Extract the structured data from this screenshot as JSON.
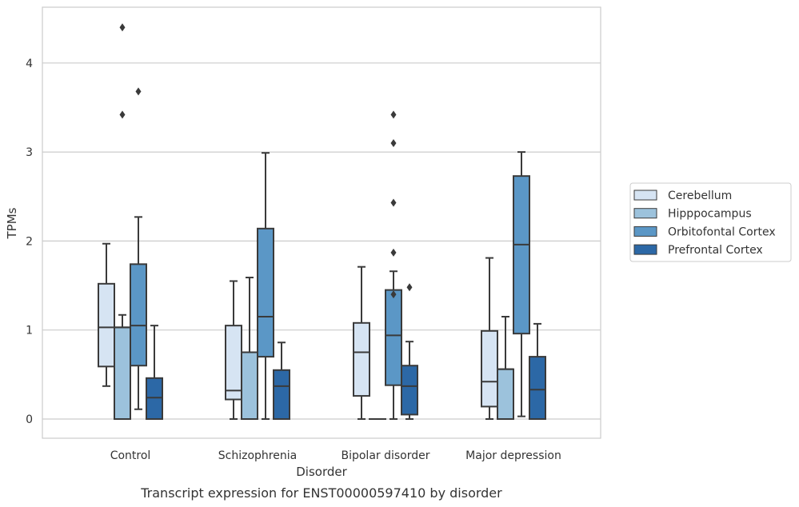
{
  "caption": "Transcript expression for ENST00000597410 by disorder",
  "chart_data": {
    "type": "box",
    "title": "",
    "xlabel": "Disorder",
    "ylabel": "TPMs",
    "ylim": [
      -0.2,
      4.6
    ],
    "yticks": [
      0,
      1,
      2,
      3,
      4
    ],
    "grid": "horizontal",
    "legend_position": "right",
    "categories": [
      "Control",
      "Schizophrenia",
      "Bipolar disorder",
      "Major depression"
    ],
    "series": [
      {
        "name": "Cerebellum",
        "color": "#d6e4f3",
        "boxes": [
          {
            "whislo": 0.37,
            "q1": 0.59,
            "med": 1.03,
            "q3": 1.52,
            "whishi": 1.97,
            "fliers": []
          },
          {
            "whislo": 0.0,
            "q1": 0.22,
            "med": 0.32,
            "q3": 1.05,
            "whishi": 1.55,
            "fliers": []
          },
          {
            "whislo": 0.0,
            "q1": 0.26,
            "med": 0.75,
            "q3": 1.08,
            "whishi": 1.71,
            "fliers": []
          },
          {
            "whislo": 0.0,
            "q1": 0.14,
            "med": 0.42,
            "q3": 0.99,
            "whishi": 1.81,
            "fliers": []
          }
        ]
      },
      {
        "name": "Hipppocampus",
        "color": "#9cc2dc",
        "boxes": [
          {
            "whislo": 0.0,
            "q1": 0.0,
            "med": 1.03,
            "q3": 1.03,
            "whishi": 1.17,
            "fliers": [
              3.42,
              4.4
            ]
          },
          {
            "whislo": 0.0,
            "q1": 0.0,
            "med": 0.75,
            "q3": 0.75,
            "whishi": 1.59,
            "fliers": []
          },
          {
            "whislo": 0.0,
            "q1": 0.0,
            "med": 0.0,
            "q3": 0.0,
            "whishi": 0.0,
            "fliers": []
          },
          {
            "whislo": 0.0,
            "q1": 0.0,
            "med": 0.56,
            "q3": 0.56,
            "whishi": 1.15,
            "fliers": []
          }
        ]
      },
      {
        "name": "Orbitofontal Cortex",
        "color": "#5b97c6",
        "boxes": [
          {
            "whislo": 0.11,
            "q1": 0.6,
            "med": 1.05,
            "q3": 1.74,
            "whishi": 2.27,
            "fliers": [
              3.68
            ]
          },
          {
            "whislo": 0.0,
            "q1": 0.7,
            "med": 1.15,
            "q3": 2.14,
            "whishi": 2.99,
            "fliers": []
          },
          {
            "whislo": 0.0,
            "q1": 0.38,
            "med": 0.94,
            "q3": 1.45,
            "whishi": 1.66,
            "fliers": [
              3.42,
              3.1,
              2.43,
              1.87,
              1.4
            ]
          },
          {
            "whislo": 0.03,
            "q1": 0.96,
            "med": 1.96,
            "q3": 2.73,
            "whishi": 3.0,
            "fliers": []
          }
        ]
      },
      {
        "name": "Prefrontal Cortex",
        "color": "#2c68a6",
        "boxes": [
          {
            "whislo": 0.0,
            "q1": 0.0,
            "med": 0.24,
            "q3": 0.46,
            "whishi": 1.05,
            "fliers": []
          },
          {
            "whislo": 0.0,
            "q1": 0.0,
            "med": 0.37,
            "q3": 0.55,
            "whishi": 0.86,
            "fliers": []
          },
          {
            "whislo": 0.0,
            "q1": 0.05,
            "med": 0.37,
            "q3": 0.6,
            "whishi": 0.87,
            "fliers": [
              1.48
            ]
          },
          {
            "whislo": 0.0,
            "q1": 0.0,
            "med": 0.33,
            "q3": 0.7,
            "whishi": 1.07,
            "fliers": []
          }
        ]
      }
    ]
  }
}
